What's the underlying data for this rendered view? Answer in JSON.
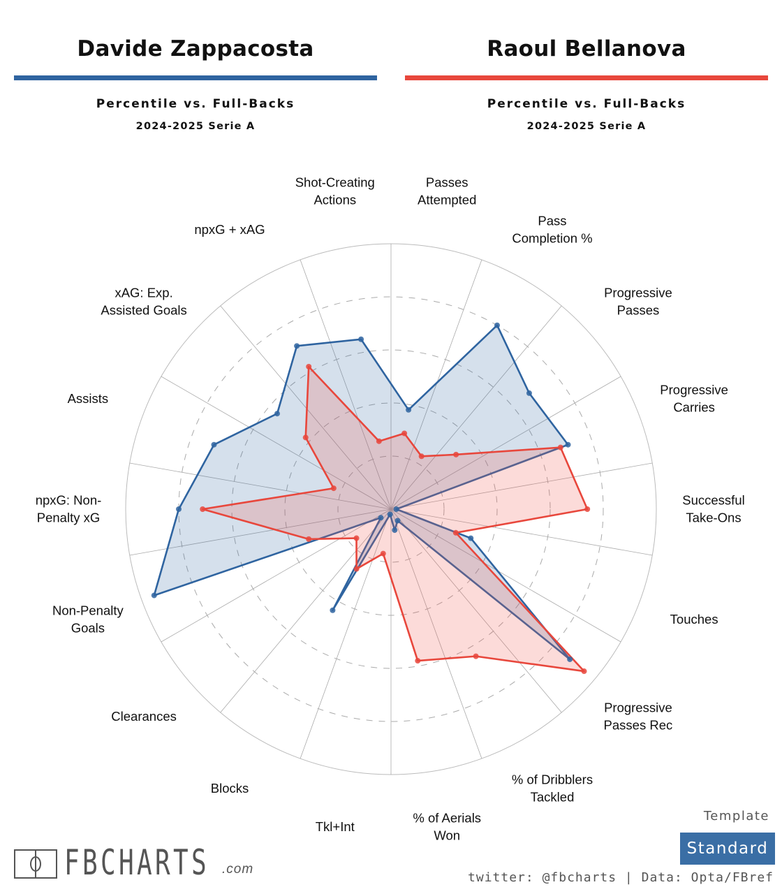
{
  "players": [
    {
      "name": "Davide Zappacosta",
      "color": "#2f64a0",
      "subtitle": "Percentile vs. Full-Backs",
      "season": "2024-2025 Serie A"
    },
    {
      "name": "Raoul Bellanova",
      "color": "#e8473c",
      "subtitle": "Percentile vs. Full-Backs",
      "season": "2024-2025 Serie A"
    }
  ],
  "chart_data": {
    "type": "radar",
    "range": [
      0,
      100
    ],
    "gridlines": [
      20,
      40,
      60,
      80,
      100
    ],
    "categories": [
      "Passes Attempted",
      "Pass Completion %",
      "Progressive Passes",
      "Progressive Carries",
      "Successful Take-Ons",
      "Touches",
      "Progressive Passes Rec",
      "% of Dribblers Tackled",
      "% of Aerials Won",
      "Tkl+Int",
      "Blocks",
      "Clearances",
      "Non-Penalty Goals",
      "npxG: Non-Penalty xG",
      "Assists",
      "xAG: Exp. Assisted Goals",
      "npxG + xAG",
      "Shot-Creating Actions"
    ],
    "label_lines": [
      [
        "Passes",
        "Attempted"
      ],
      [
        "Pass",
        "Completion %"
      ],
      [
        "Progressive",
        "Passes"
      ],
      [
        "Progressive",
        "Carries"
      ],
      [
        "Successful",
        "Take-Ons"
      ],
      [
        "Touches"
      ],
      [
        "Progressive",
        "Passes Rec"
      ],
      [
        "% of Dribblers",
        "Tackled"
      ],
      [
        "% of Aerials",
        "Won"
      ],
      [
        "Tkl+Int"
      ],
      [
        "Blocks"
      ],
      [
        "Clearances"
      ],
      [
        "Non-Penalty",
        "Goals"
      ],
      [
        "npxG: Non-",
        "Penalty xG"
      ],
      [
        "Assists"
      ],
      [
        "xAG: Exp.",
        "Assisted Goals"
      ],
      [
        "npxG + xAG"
      ],
      [
        "Shot-Creating",
        "Actions"
      ]
    ],
    "series": [
      {
        "name": "Davide Zappacosta",
        "color": "#2f64a0",
        "fill": "rgba(47,100,160,0.2)",
        "values": [
          38,
          80,
          68,
          71,
          2,
          32,
          88,
          5,
          8,
          2,
          44,
          5,
          95,
          80,
          71,
          56,
          71,
          65
        ]
      },
      {
        "name": "Raoul Bellanova",
        "color": "#e8473c",
        "fill": "rgba(240,90,80,0.22)",
        "values": [
          29,
          23,
          32,
          68,
          74,
          26,
          95,
          64,
          58,
          17,
          26,
          17,
          33,
          71,
          23,
          42,
          62,
          26
        ]
      }
    ]
  },
  "footer": {
    "logo": "FBCHARTS",
    "logo_suffix": ".com",
    "template_label": "Template",
    "template_value": "Standard",
    "credit": "twitter: @fbcharts | Data: Opta/FBref"
  }
}
